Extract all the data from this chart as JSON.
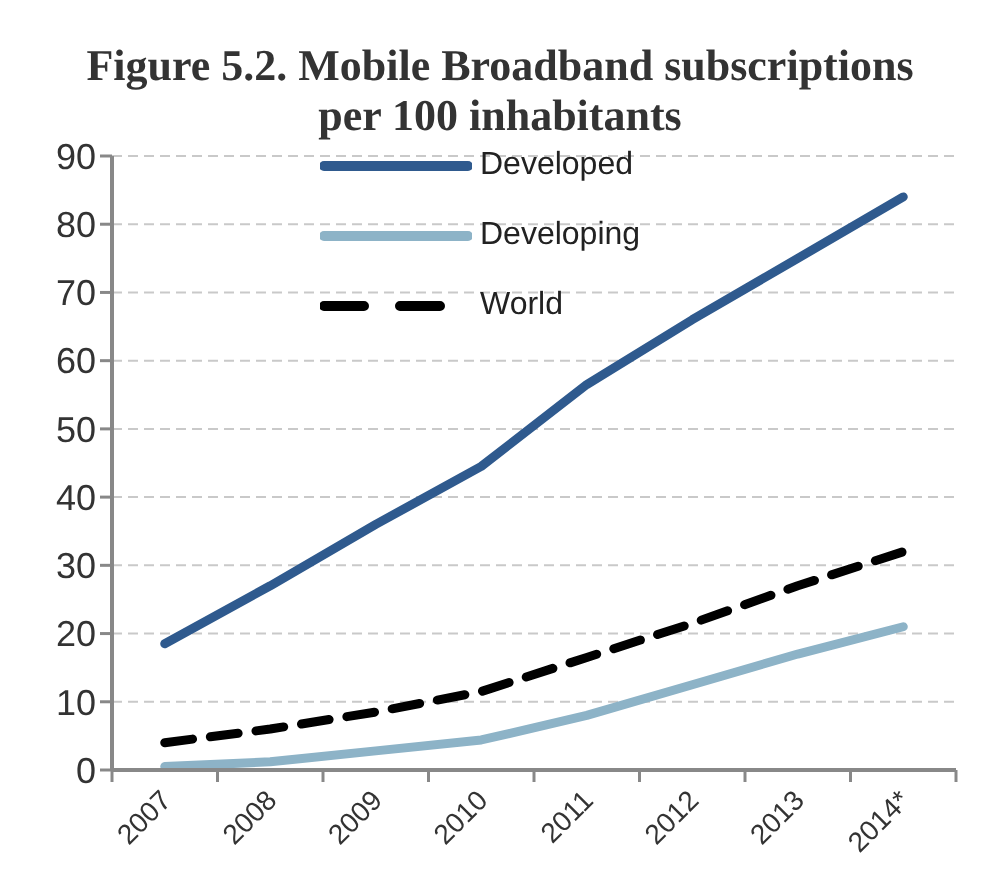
{
  "chart_data": {
    "type": "line",
    "title": "Figure 5.2. Mobile Broadband subscriptions per 100 inhabitants",
    "categories": [
      "2007",
      "2008",
      "2009",
      "2010",
      "2011",
      "2012",
      "2013",
      "2014*"
    ],
    "series": [
      {
        "name": "Developed",
        "color": "#2f5a8e",
        "values": [
          18.5,
          27,
          36,
          44.5,
          56.5,
          66,
          75,
          84
        ]
      },
      {
        "name": "Developing",
        "color": "#8db3c7",
        "values": [
          0.5,
          1.2,
          2.8,
          4.4,
          8,
          12.5,
          17,
          21
        ]
      },
      {
        "name": "World",
        "color": "#000000",
        "line_style": "dashed",
        "values": [
          4,
          6,
          8.5,
          11.5,
          16.5,
          21.5,
          27,
          32
        ]
      }
    ],
    "ylim": [
      0,
      90
    ],
    "yticks": [
      0,
      10,
      20,
      30,
      40,
      50,
      60,
      70,
      80,
      90
    ],
    "grid": "y",
    "legend": "top left"
  }
}
